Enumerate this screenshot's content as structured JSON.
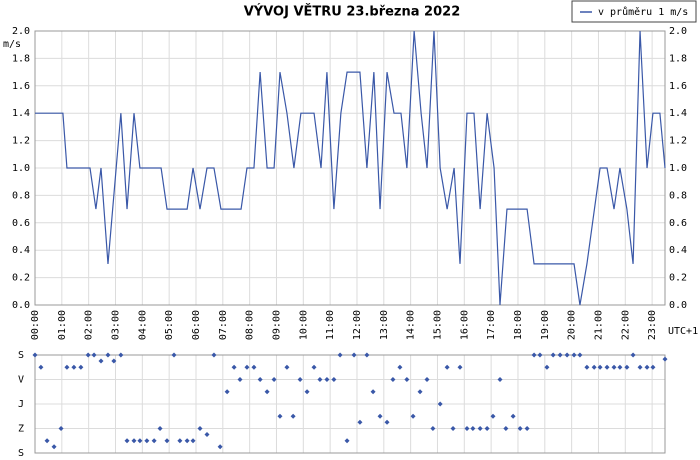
{
  "chart_data": [
    {
      "type": "line",
      "title": "VÝVOJ VĚTRU  23.března 2022",
      "y_label": "m/s",
      "x_note": "UTC+1",
      "xlim": [
        0,
        23.48
      ],
      "xticks": [
        {
          "value": 0,
          "label": "00:00"
        },
        {
          "value": 1,
          "label": "01:00"
        },
        {
          "value": 2,
          "label": "02:00"
        },
        {
          "value": 3,
          "label": "03:00"
        },
        {
          "value": 4,
          "label": "04:00"
        },
        {
          "value": 5,
          "label": "05:00"
        },
        {
          "value": 6,
          "label": "06:00"
        },
        {
          "value": 7,
          "label": "07:00"
        },
        {
          "value": 8,
          "label": "08:00"
        },
        {
          "value": 9,
          "label": "09:00"
        },
        {
          "value": 10,
          "label": "10:00"
        },
        {
          "value": 11,
          "label": "11:00"
        },
        {
          "value": 12,
          "label": "12:00"
        },
        {
          "value": 13,
          "label": "13:00"
        },
        {
          "value": 14,
          "label": "14:00"
        },
        {
          "value": 15,
          "label": "15:00"
        },
        {
          "value": 16,
          "label": "16:00"
        },
        {
          "value": 17,
          "label": "17:00"
        },
        {
          "value": 18,
          "label": "18:00"
        },
        {
          "value": 19,
          "label": "19:00"
        },
        {
          "value": 20,
          "label": "20:00"
        },
        {
          "value": 21,
          "label": "21:00"
        },
        {
          "value": 22,
          "label": "22:00"
        },
        {
          "value": 23,
          "label": "23:00"
        }
      ],
      "ylim": [
        0,
        2
      ],
      "yticks": [
        {
          "value": 0,
          "label": "0.0"
        },
        0.2,
        0.4,
        0.6,
        0.8,
        {
          "value": 1,
          "label": "1.0"
        },
        1.2,
        1.4,
        1.6,
        1.8,
        {
          "value": 2,
          "label": "2.0"
        }
      ],
      "grid": true,
      "legend": "top-right",
      "series": [
        {
          "name": "v průměru 1 m/s",
          "color": "#3a58a8",
          "x": [
            0,
            1.04,
            1.19,
            2.05,
            2.27,
            2.46,
            2.72,
            3.2,
            3.43,
            3.69,
            3.91,
            4.7,
            4.92,
            5.67,
            5.89,
            6.15,
            6.41,
            6.67,
            6.93,
            7.68,
            7.9,
            8.16,
            8.39,
            8.65,
            8.91,
            9.13,
            9.39,
            9.65,
            9.91,
            10.4,
            10.66,
            10.88,
            11.14,
            11.4,
            11.63,
            12.11,
            12.37,
            12.63,
            12.86,
            13.12,
            13.38,
            13.64,
            13.86,
            14.13,
            14.39,
            14.61,
            14.87,
            15.1,
            15.36,
            15.62,
            15.84,
            16.1,
            16.36,
            16.59,
            16.85,
            17.11,
            17.33,
            17.59,
            18.34,
            18.6,
            20.09,
            20.31,
            20.57,
            21.06,
            21.32,
            21.58,
            21.8,
            22.06,
            22.29,
            22.55,
            22.81,
            23.03,
            23.29,
            23.48
          ],
          "values": [
            1.4,
            1.4,
            1.0,
            1.0,
            0.7,
            1.0,
            0.3,
            1.4,
            0.7,
            1.4,
            1.0,
            1.0,
            0.7,
            0.7,
            1.0,
            0.7,
            1.0,
            1.0,
            0.7,
            0.7,
            1.0,
            1.0,
            1.7,
            1.0,
            1.0,
            1.7,
            1.4,
            1.0,
            1.4,
            1.4,
            1.0,
            1.7,
            0.7,
            1.4,
            1.7,
            1.7,
            1.0,
            1.7,
            0.7,
            1.7,
            1.4,
            1.4,
            1.0,
            2.0,
            1.4,
            1.0,
            2.0,
            1.0,
            0.7,
            1.0,
            0.3,
            1.4,
            1.4,
            0.7,
            1.4,
            1.0,
            0.0,
            0.7,
            0.7,
            0.3,
            0.3,
            0.0,
            0.3,
            1.0,
            1.0,
            0.7,
            1.0,
            0.7,
            0.3,
            2.0,
            1.0,
            1.4,
            1.4,
            1.0
          ]
        }
      ]
    },
    {
      "type": "scatter",
      "xlim": [
        0,
        23.48
      ],
      "xticks": [
        0,
        1,
        2,
        3,
        4,
        5,
        6,
        7,
        8,
        9,
        10,
        11,
        12,
        13,
        14,
        15,
        16,
        17,
        18,
        19,
        20,
        21,
        22,
        23
      ],
      "ylim": [
        360,
        0
      ],
      "yticks": [
        {
          "value": 0,
          "label": "S"
        },
        {
          "value": 90,
          "label": "V"
        },
        {
          "value": 180,
          "label": "J"
        },
        {
          "value": 270,
          "label": "Z"
        },
        {
          "value": 360,
          "label": "S"
        }
      ],
      "grid": true,
      "color": "#3a58a8",
      "x": [
        0,
        0.22,
        0.45,
        0.71,
        0.97,
        1.19,
        1.45,
        1.71,
        1.98,
        2.2,
        2.46,
        2.72,
        2.94,
        3.2,
        3.43,
        3.69,
        3.91,
        4.17,
        4.44,
        4.66,
        4.92,
        5.18,
        5.4,
        5.67,
        5.89,
        6.15,
        6.41,
        6.67,
        6.9,
        7.16,
        7.42,
        7.64,
        7.9,
        8.16,
        8.39,
        8.65,
        8.91,
        9.13,
        9.39,
        9.62,
        9.88,
        10.14,
        10.4,
        10.62,
        10.88,
        11.14,
        11.37,
        11.63,
        11.89,
        12.11,
        12.37,
        12.6,
        12.86,
        13.12,
        13.34,
        13.6,
        13.86,
        14.09,
        14.35,
        14.61,
        14.83,
        15.1,
        15.36,
        15.58,
        15.84,
        16.1,
        16.32,
        16.59,
        16.85,
        17.07,
        17.33,
        17.55,
        17.82,
        18.08,
        18.34,
        18.6,
        18.82,
        19.08,
        19.31,
        19.57,
        19.83,
        20.09,
        20.31,
        20.57,
        20.84,
        21.06,
        21.32,
        21.58,
        21.8,
        22.06,
        22.29,
        22.55,
        22.81,
        23.03,
        23.48
      ],
      "values": [
        0,
        45,
        315,
        337,
        270,
        45,
        45,
        45,
        0,
        0,
        22,
        0,
        22,
        0,
        315,
        315,
        315,
        315,
        315,
        270,
        315,
        0,
        315,
        315,
        315,
        270,
        292,
        0,
        337,
        135,
        45,
        90,
        45,
        45,
        90,
        135,
        90,
        225,
        45,
        225,
        90,
        135,
        45,
        90,
        90,
        90,
        0,
        315,
        0,
        247,
        0,
        135,
        225,
        247,
        90,
        45,
        90,
        225,
        135,
        90,
        270,
        180,
        45,
        270,
        45,
        270,
        270,
        270,
        270,
        225,
        90,
        270,
        225,
        270,
        270,
        0,
        0,
        45,
        0,
        0,
        0,
        0,
        0,
        45,
        45,
        45,
        45,
        45,
        45,
        45,
        0,
        45,
        45,
        45,
        15
      ]
    }
  ]
}
